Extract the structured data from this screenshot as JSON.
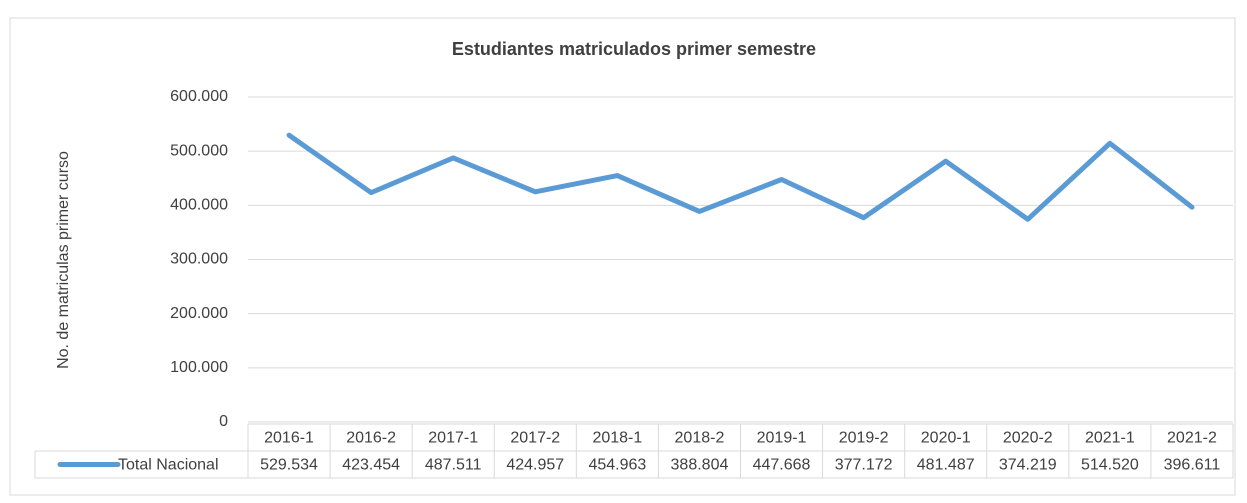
{
  "chart_data": {
    "type": "line",
    "title": "Estudiantes matriculados primer semestre",
    "y_label": "No. de matriculas primer curso",
    "categories": [
      "2016-1",
      "2016-2",
      "2017-1",
      "2017-2",
      "2018-1",
      "2018-2",
      "2019-1",
      "2019-2",
      "2020-1",
      "2020-2",
      "2021-1",
      "2021-2"
    ],
    "series": [
      {
        "name": "Total Nacional",
        "color": "#5b9bd5",
        "values": [
          529534,
          423454,
          487511,
          424957,
          454963,
          388804,
          447668,
          377172,
          481487,
          374219,
          514520,
          396611
        ],
        "value_labels": [
          "529.534",
          "423.454",
          "487.511",
          "424.957",
          "454.963",
          "388.804",
          "447.668",
          "377.172",
          "481.487",
          "374.219",
          "514.520",
          "396.611"
        ]
      }
    ],
    "ylim": [
      0,
      600000
    ],
    "yticks": [
      0,
      {
        "value": 100000,
        "label": "100.000"
      },
      {
        "value": 200000,
        "label": "200.000"
      },
      {
        "value": 300000,
        "label": "300.000"
      },
      {
        "value": 400000,
        "label": "400.000"
      },
      {
        "value": 500000,
        "label": "500.000"
      },
      {
        "value": 600000,
        "label": "600.000"
      }
    ],
    "grid": true
  }
}
